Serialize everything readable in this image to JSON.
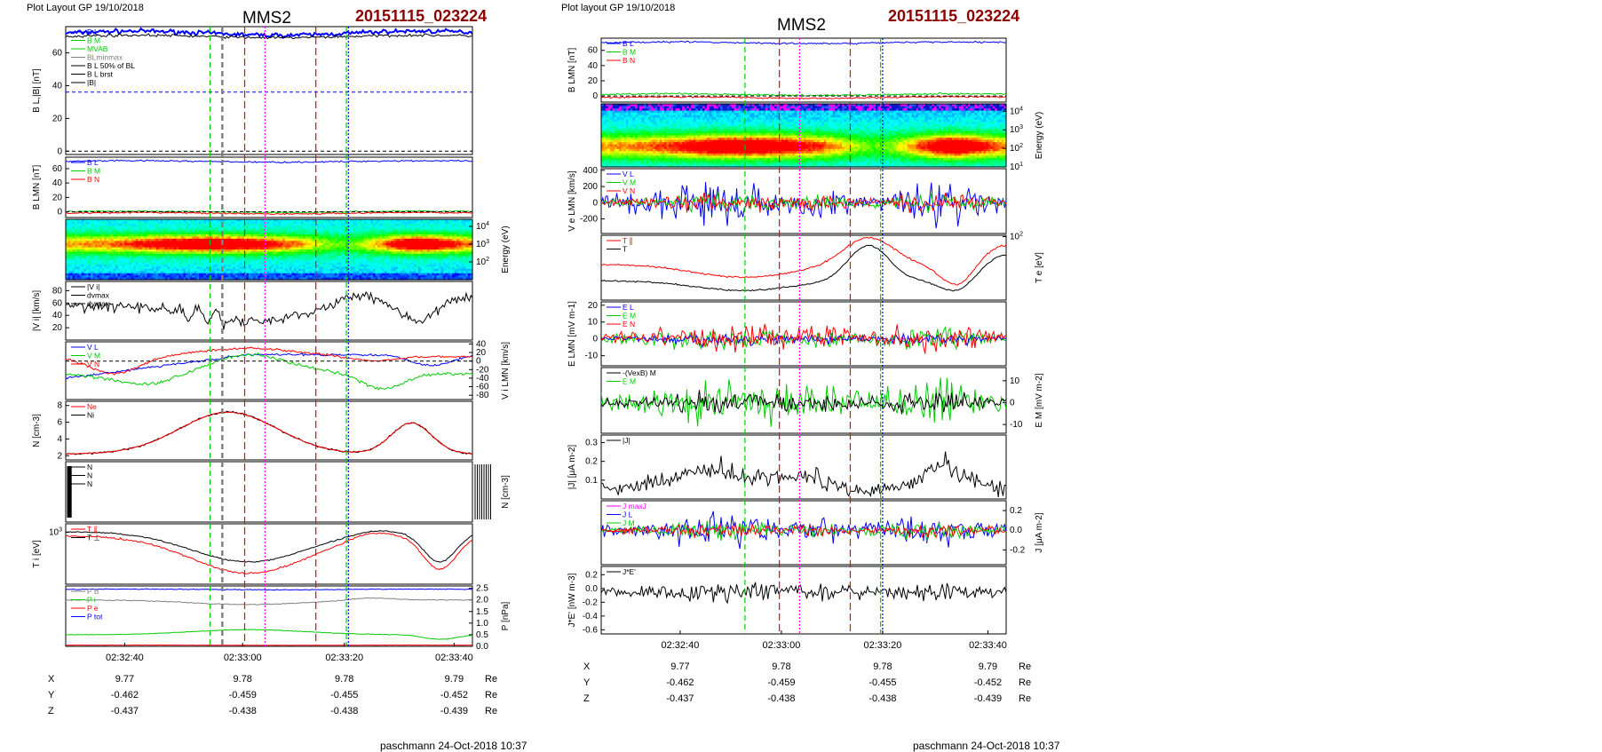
{
  "colors": {
    "blue": "#0000ff",
    "green": "#00cc00",
    "red": "#ff0000",
    "black": "#000000",
    "magenta": "#ff00ff",
    "gray": "#808080",
    "event": "#8b0000"
  },
  "figures": [
    {
      "header": "Plot Layout GP 19/10/2018",
      "title": "MMS2",
      "event": "20151115_023224",
      "footer": "paschmann 24-Oct-2018 10:37",
      "time_ticks": [
        "02:32:40",
        "02:33:00",
        "02:33:20",
        "02:33:40"
      ],
      "ephemeris": {
        "rows": [
          {
            "label": "X",
            "values": [
              "9.77",
              "9.78",
              "9.78",
              "9.79"
            ],
            "unit": "Re"
          },
          {
            "label": "Y",
            "values": [
              "-0.462",
              "-0.459",
              "-0.455",
              "-0.452"
            ],
            "unit": "Re"
          },
          {
            "label": "Z",
            "values": [
              "-0.437",
              "-0.438",
              "-0.438",
              "-0.439"
            ],
            "unit": "Re"
          }
        ]
      }
    },
    {
      "header": "Plot layout GP 19/10/2018",
      "title": "MMS2",
      "event": "20151115_023224",
      "footer": "paschmann 24-Oct-2018 10:37",
      "time_ticks": [
        "02:32:40",
        "02:33:00",
        "02:33:20",
        "02:33:40"
      ],
      "ephemeris": {
        "rows": [
          {
            "label": "X",
            "values": [
              "9.77",
              "9.78",
              "9.78",
              "9.79"
            ],
            "unit": "Re"
          },
          {
            "label": "Y",
            "values": [
              "-0.462",
              "-0.459",
              "-0.455",
              "-0.452"
            ],
            "unit": "Re"
          },
          {
            "label": "Z",
            "values": [
              "-0.437",
              "-0.438",
              "-0.438",
              "-0.439"
            ],
            "unit": "Re"
          }
        ]
      }
    }
  ],
  "chart_data": [
    {
      "figure": 0,
      "panels": [
        {
          "type": "line",
          "ylabel": "B_L,|B| [nT]",
          "ylabel_side": "left",
          "ylim": [
            -2,
            76
          ],
          "ticks": [
            "0",
            "20",
            "40",
            "60"
          ],
          "legend": [
            "B_L",
            "B_M",
            "MVAB",
            "BLminmax",
            "B_L 50% of BL",
            "B_L brst",
            "|B|"
          ],
          "series": [
            {
              "name": "B_L",
              "color": "blue",
              "shape": "flat",
              "level": 72,
              "wig": 2.5,
              "thick": true
            },
            {
              "name": "|B|",
              "color": "black",
              "shape": "flat",
              "level": 70,
              "wig": 1.5
            },
            {
              "name": "B_L 50% of BL",
              "color": "blue",
              "shape": "const",
              "level": 36,
              "dash": true
            },
            {
              "name": "zero",
              "color": "black",
              "shape": "const",
              "level": 0,
              "dash": true
            }
          ]
        },
        {
          "type": "line",
          "ylabel": "B_LMN [nT]",
          "ylabel_side": "left",
          "ylim": [
            -8,
            76
          ],
          "ticks": [
            "0",
            "20",
            "40",
            "60"
          ],
          "legend": [
            "B_L",
            "B_M",
            "B_N"
          ],
          "series": [
            {
              "name": "B_L",
              "color": "blue",
              "shape": "flat",
              "level": 70,
              "wig": 2
            },
            {
              "name": "B_M",
              "color": "green",
              "shape": "flat",
              "level": 0,
              "wig": 2
            },
            {
              "name": "B_N",
              "color": "red",
              "shape": "flat",
              "level": -2,
              "wig": 2
            },
            {
              "name": "zero",
              "color": "black",
              "shape": "const",
              "level": 0,
              "dash": true
            }
          ]
        },
        {
          "type": "heatmap",
          "ylabel": "Energy (eV)",
          "ylabel_side": "right",
          "ylim_log": [
            1,
            4.4
          ],
          "ticks": [
            "10^2",
            "10^3",
            "10^4"
          ],
          "tick_vals": [
            2,
            3,
            4
          ],
          "peak_center": 3.0,
          "peak_width": 0.35
        },
        {
          "type": "line",
          "ylabel": "|V_i| [km/s]",
          "ylabel_side": "left",
          "ylim": [
            0,
            95
          ],
          "ticks": [
            "20",
            "40",
            "60",
            "80"
          ],
          "legend": [
            "|V_i|",
            "dvmax",
            "dvmax"
          ],
          "series": [
            {
              "name": "|V_i|",
              "color": "black",
              "shape": "vi",
              "wig": 12,
              "osc": true
            }
          ]
        },
        {
          "type": "line",
          "ylabel": "V_i LMN [km/s]",
          "ylabel_side": "right",
          "ylim": [
            -90,
            45
          ],
          "ticks": [
            "40",
            "20",
            "0",
            "-20",
            "-40",
            "-60",
            "-80"
          ],
          "legend": [
            "V_L",
            "V_M",
            "V_N"
          ],
          "series": [
            {
              "name": "V_L",
              "color": "blue",
              "shape": "vl",
              "wig": 4
            },
            {
              "name": "V_M",
              "color": "green",
              "shape": "vm",
              "wig": 6
            },
            {
              "name": "V_N",
              "color": "red",
              "shape": "vn",
              "wig": 4
            },
            {
              "name": "zero",
              "color": "black",
              "shape": "const",
              "level": 0,
              "dash": true
            }
          ]
        },
        {
          "type": "line",
          "ylabel": "N [cm^-3]",
          "ylabel_side": "left",
          "ylim": [
            1.5,
            8.5
          ],
          "ticks": [
            "2",
            "4",
            "6",
            "8"
          ],
          "legend": [
            "Ne",
            "Ni"
          ],
          "series": [
            {
              "name": "Ni",
              "color": "black",
              "shape": "dens",
              "wig": 0.15
            },
            {
              "name": "Ne",
              "color": "red",
              "shape": "dens",
              "wig": 0.1
            }
          ]
        },
        {
          "type": "blank",
          "ylabel": "N [cm^-3]",
          "ylabel_side": "right",
          "legend": [
            "N",
            "N",
            "N"
          ]
        },
        {
          "type": "line",
          "ylabel": "T_i [eV]",
          "ylabel_side": "left",
          "ylim": [
            0,
            1
          ],
          "ticks": [
            "10^3"
          ],
          "tick_fracs": [
            0.86
          ],
          "legend": [
            "T_∥",
            "T_⊥"
          ],
          "series": [
            {
              "name": "T_⊥",
              "color": "black",
              "shape": "ti",
              "wig": 0.015
            },
            {
              "name": "T_∥",
              "color": "red",
              "shape": "ti2",
              "wig": 0.02
            }
          ]
        },
        {
          "type": "line",
          "ylabel": "P [nPa]",
          "ylabel_side": "right",
          "ylim": [
            0,
            2.6
          ],
          "ticks": [
            "2.5",
            "2.0",
            "1.5",
            "1.0",
            "0.5",
            "0.0"
          ],
          "legend": [
            "P_B",
            "P_i",
            "P_e",
            "P_tot"
          ],
          "series": [
            {
              "name": "P_tot",
              "color": "blue",
              "shape": "flat",
              "level": 2.45,
              "wig": 0.03
            },
            {
              "name": "P_B",
              "color": "gray",
              "shape": "pb",
              "wig": 0.03
            },
            {
              "name": "P_i",
              "color": "green",
              "shape": "pi",
              "wig": 0.02
            },
            {
              "name": "P_e",
              "color": "red",
              "shape": "flat",
              "level": 0.05,
              "wig": 0.01
            }
          ]
        }
      ]
    },
    {
      "figure": 1,
      "panels": [
        {
          "type": "line",
          "ylabel": "B_LMN [nT]",
          "ylabel_side": "left",
          "ylim": [
            -8,
            76
          ],
          "ticks": [
            "0",
            "20",
            "40",
            "60"
          ],
          "legend": [
            "B_L",
            "B_M",
            "B_N"
          ],
          "series": [
            {
              "name": "B_L",
              "color": "blue",
              "shape": "flat",
              "level": 70,
              "wig": 2
            },
            {
              "name": "B_M",
              "color": "green",
              "shape": "flat",
              "level": 2,
              "wig": 2
            },
            {
              "name": "B_N",
              "color": "red",
              "shape": "flat",
              "level": -2,
              "wig": 2
            },
            {
              "name": "zero",
              "color": "black",
              "shape": "const",
              "level": 0,
              "dash": true
            }
          ]
        },
        {
          "type": "heatmap",
          "ylabel": "Energy (eV)",
          "ylabel_side": "right",
          "ylim_log": [
            1,
            4.4
          ],
          "ticks": [
            "10^1",
            "10^2",
            "10^3",
            "10^4"
          ],
          "tick_vals": [
            1,
            2,
            3,
            4
          ],
          "peak_center": 2.1,
          "peak_width": 0.45,
          "top_band": true
        },
        {
          "type": "line",
          "ylabel": "V_e LMN [km/s]",
          "ylabel_side": "left",
          "ylim": [
            -380,
            420
          ],
          "ticks": [
            "400",
            "200",
            "0",
            "-200"
          ],
          "legend": [
            "V_L",
            "V_M",
            "V_N"
          ],
          "series": [
            {
              "name": "V_L",
              "color": "blue",
              "shape": "noise",
              "level": 0,
              "wig": 140
            },
            {
              "name": "V_M",
              "color": "green",
              "shape": "noise",
              "level": 0,
              "wig": 60
            },
            {
              "name": "V_N",
              "color": "red",
              "shape": "noise",
              "level": 0,
              "wig": 70
            }
          ]
        },
        {
          "type": "line",
          "ylabel": "T_e [eV]",
          "ylabel_side": "right",
          "ylim": [
            0,
            1
          ],
          "ticks": [
            "10^2"
          ],
          "tick_fracs": [
            0.98
          ],
          "legend": [
            "T_∥",
            "T"
          ],
          "series": [
            {
              "name": "T_∥",
              "color": "red",
              "shape": "te2",
              "wig": 0.02
            },
            {
              "name": "T",
              "color": "black",
              "shape": "te",
              "wig": 0.015
            }
          ]
        },
        {
          "type": "line",
          "ylabel": "E_LMN [mV m^-1]",
          "ylabel_side": "left",
          "ylim": [
            -16,
            22
          ],
          "ticks": [
            "20",
            "10",
            "0",
            "-10"
          ],
          "legend": [
            "E_L",
            "E_M",
            "E_N"
          ],
          "series": [
            {
              "name": "E_M",
              "color": "green",
              "shape": "noise",
              "level": 0,
              "wig": 4
            },
            {
              "name": "E_L",
              "color": "blue",
              "shape": "noise",
              "level": 0,
              "wig": 2
            },
            {
              "name": "E_N",
              "color": "red",
              "shape": "noise",
              "level": 1,
              "wig": 5
            }
          ]
        },
        {
          "type": "line",
          "ylabel": "E_M [mV m^-2]",
          "ylabel_side": "right",
          "ylim": [
            -14,
            16
          ],
          "ticks": [
            "10",
            "0",
            "-10"
          ],
          "legend": [
            "-(VexB)_M",
            "E_M"
          ],
          "series": [
            {
              "name": "E_M",
              "color": "green",
              "shape": "noise",
              "level": 0,
              "wig": 6
            },
            {
              "name": "-(VexB)_M",
              "color": "black",
              "shape": "noise",
              "level": 0,
              "wig": 3
            }
          ]
        },
        {
          "type": "line",
          "ylabel": "|J| [μA m^-2]",
          "ylabel_side": "left",
          "ylim": [
            0,
            0.34
          ],
          "ticks": [
            "0.3",
            "0.2",
            "0.1"
          ],
          "legend": [
            "|J|"
          ],
          "series": [
            {
              "name": "|J|",
              "color": "black",
              "shape": "jabs",
              "wig": 0.06
            }
          ]
        },
        {
          "type": "line",
          "ylabel": "J [μA m^-2]",
          "ylabel_side": "right",
          "ylim": [
            -0.35,
            0.3
          ],
          "ticks": [
            "0.2",
            "0.0",
            "-0.2"
          ],
          "legend": [
            "J_maxJ",
            "J_L",
            "J_M",
            "J_N"
          ],
          "series": [
            {
              "name": "J_L",
              "color": "blue",
              "shape": "noise",
              "level": 0,
              "wig": 0.09
            },
            {
              "name": "J_M",
              "color": "green",
              "shape": "noise",
              "level": 0,
              "wig": 0.05
            },
            {
              "name": "J_N",
              "color": "red",
              "shape": "noise",
              "level": 0,
              "wig": 0.04
            }
          ]
        },
        {
          "type": "line",
          "ylabel": "J*E' [nW m^-3]",
          "ylabel_side": "left",
          "ylim": [
            -0.66,
            0.32
          ],
          "ticks": [
            "0.2",
            "0.0",
            "-0.2",
            "-0.4",
            "-0.6"
          ],
          "legend": [
            "J*E'"
          ],
          "series": [
            {
              "name": "J*E'",
              "color": "black",
              "shape": "noise",
              "level": -0.05,
              "wig": 0.09
            }
          ]
        }
      ]
    }
  ]
}
